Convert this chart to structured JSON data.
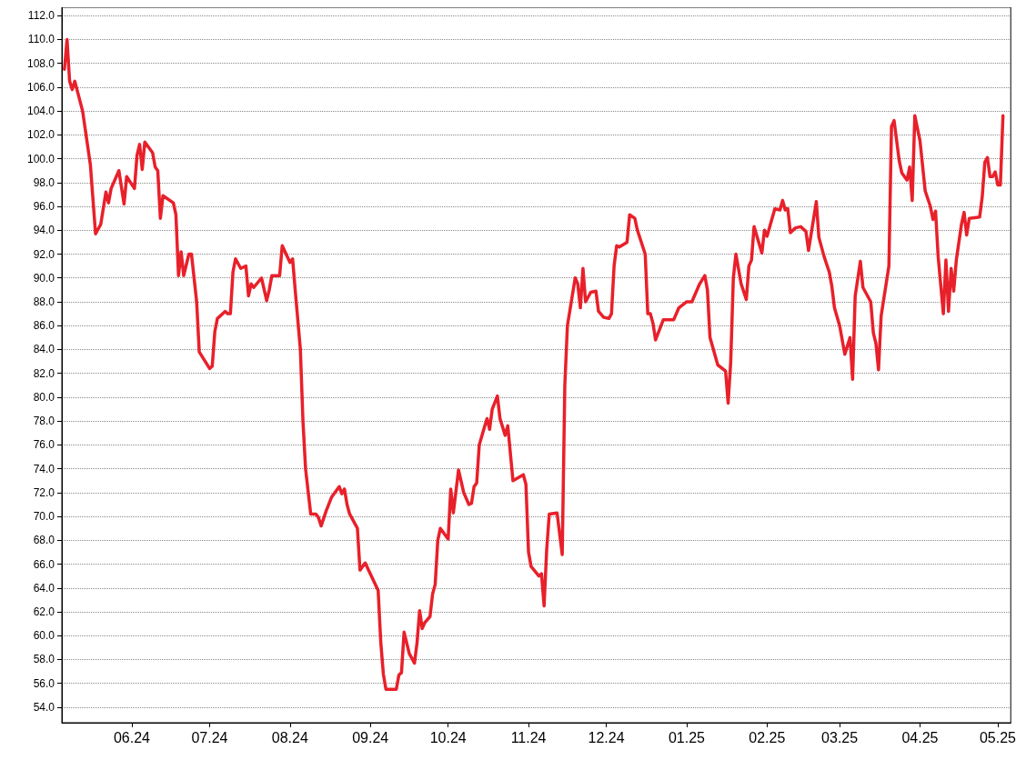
{
  "chart_data": {
    "type": "line",
    "color": "#e8202a",
    "marker": "none",
    "line_style": "solid",
    "grid": "y",
    "xlim": [
      "2024-05-05",
      "2025-05-06"
    ],
    "xticks": [
      {
        "value": "2024-06-01",
        "label": "06.24"
      },
      {
        "value": "2024-07-01",
        "label": "07.24"
      },
      {
        "value": "2024-08-01",
        "label": "08.24"
      },
      {
        "value": "2024-09-01",
        "label": "09.24"
      },
      {
        "value": "2024-10-01",
        "label": "10.24"
      },
      {
        "value": "2024-11-01",
        "label": "11.24"
      },
      {
        "value": "2024-12-01",
        "label": "12.24"
      },
      {
        "value": "2025-01-01",
        "label": "01.25"
      },
      {
        "value": "2025-02-01",
        "label": "02.25"
      },
      {
        "value": "2025-03-01",
        "label": "03.25"
      },
      {
        "value": "2025-04-01",
        "label": "04.25"
      },
      {
        "value": "2025-05-01",
        "label": "05.25"
      }
    ],
    "ylim": [
      52.7,
      112.7
    ],
    "yticks": [
      {
        "value": 54,
        "label": "54.0"
      },
      {
        "value": 56,
        "label": "56.0"
      },
      {
        "value": 58,
        "label": "58.0"
      },
      {
        "value": 60,
        "label": "60.0"
      },
      {
        "value": 62,
        "label": "62.0"
      },
      {
        "value": 64,
        "label": "64.0"
      },
      {
        "value": 66,
        "label": "66.0"
      },
      {
        "value": 68,
        "label": "68.0"
      },
      {
        "value": 70,
        "label": "70.0"
      },
      {
        "value": 72,
        "label": "72.0"
      },
      {
        "value": 74,
        "label": "74.0"
      },
      {
        "value": 76,
        "label": "76.0"
      },
      {
        "value": 78,
        "label": "78.0"
      },
      {
        "value": 80,
        "label": "80.0"
      },
      {
        "value": 82,
        "label": "82.0"
      },
      {
        "value": 84,
        "label": "84.0"
      },
      {
        "value": 86,
        "label": "86.0"
      },
      {
        "value": 88,
        "label": "88.0"
      },
      {
        "value": 90,
        "label": "90.0"
      },
      {
        "value": 92,
        "label": "92.0"
      },
      {
        "value": 94,
        "label": "94.0"
      },
      {
        "value": 96,
        "label": "96.0"
      },
      {
        "value": 98,
        "label": "98.0"
      },
      {
        "value": 100,
        "label": "100.0"
      },
      {
        "value": 102,
        "label": "102.0"
      },
      {
        "value": 104,
        "label": "104.0"
      },
      {
        "value": 106,
        "label": "106.0"
      },
      {
        "value": 108,
        "label": "108.0"
      },
      {
        "value": 110,
        "label": "110.0"
      },
      {
        "value": 112,
        "label": "112.0"
      }
    ],
    "x": [
      "2024-05-06",
      "2024-05-07",
      "2024-05-08",
      "2024-05-09",
      "2024-05-10",
      "2024-05-13",
      "2024-05-14",
      "2024-05-16",
      "2024-05-18",
      "2024-05-20",
      "2024-05-22",
      "2024-05-23",
      "2024-05-24",
      "2024-05-27",
      "2024-05-29",
      "2024-05-30",
      "2024-06-02",
      "2024-06-03",
      "2024-06-04",
      "2024-06-05",
      "2024-06-06",
      "2024-06-09",
      "2024-06-10",
      "2024-06-11",
      "2024-06-12",
      "2024-06-13",
      "2024-06-17",
      "2024-06-18",
      "2024-06-19",
      "2024-06-20",
      "2024-06-21",
      "2024-06-23",
      "2024-06-24",
      "2024-06-26",
      "2024-06-27",
      "2024-07-01",
      "2024-07-02",
      "2024-07-03",
      "2024-07-04",
      "2024-07-07",
      "2024-07-08",
      "2024-07-09",
      "2024-07-10",
      "2024-07-11",
      "2024-07-13",
      "2024-07-15",
      "2024-07-16",
      "2024-07-17",
      "2024-07-18",
      "2024-07-21",
      "2024-07-23",
      "2024-07-24",
      "2024-07-25",
      "2024-07-27",
      "2024-07-28",
      "2024-07-29",
      "2024-08-01",
      "2024-08-02",
      "2024-08-03",
      "2024-08-05",
      "2024-08-06",
      "2024-08-07",
      "2024-08-09",
      "2024-08-11",
      "2024-08-12",
      "2024-08-13",
      "2024-08-15",
      "2024-08-17",
      "2024-08-20",
      "2024-08-21",
      "2024-08-22",
      "2024-08-23",
      "2024-08-24",
      "2024-08-27",
      "2024-08-28",
      "2024-08-30",
      "2024-09-04",
      "2024-09-05",
      "2024-09-06",
      "2024-09-07",
      "2024-09-11",
      "2024-09-12",
      "2024-09-13",
      "2024-09-14",
      "2024-09-16",
      "2024-09-18",
      "2024-09-19",
      "2024-09-20",
      "2024-09-21",
      "2024-09-22",
      "2024-09-24",
      "2024-09-25",
      "2024-09-26",
      "2024-09-27",
      "2024-09-28",
      "2024-10-01",
      "2024-10-02",
      "2024-10-03",
      "2024-10-05",
      "2024-10-07",
      "2024-10-09",
      "2024-10-10",
      "2024-10-11",
      "2024-10-12",
      "2024-10-13",
      "2024-10-15",
      "2024-10-16",
      "2024-10-17",
      "2024-10-18",
      "2024-10-20",
      "2024-10-21",
      "2024-10-23",
      "2024-10-24",
      "2024-10-26",
      "2024-10-30",
      "2024-10-31",
      "2024-11-01",
      "2024-11-02",
      "2024-11-05",
      "2024-11-06",
      "2024-11-07",
      "2024-11-08",
      "2024-11-09",
      "2024-11-12",
      "2024-11-14",
      "2024-11-15",
      "2024-11-16",
      "2024-11-19",
      "2024-11-20",
      "2024-11-21",
      "2024-11-22",
      "2024-11-23",
      "2024-11-25",
      "2024-11-27",
      "2024-11-28",
      "2024-11-30",
      "2024-12-02",
      "2024-12-03",
      "2024-12-04",
      "2024-12-05",
      "2024-12-06",
      "2024-12-09",
      "2024-12-10",
      "2024-12-12",
      "2024-12-13",
      "2024-12-16",
      "2024-12-17",
      "2024-12-18",
      "2024-12-19",
      "2024-12-20",
      "2024-12-23",
      "2024-12-27",
      "2024-12-29",
      "2025-01-01",
      "2025-01-03",
      "2025-01-06",
      "2025-01-08",
      "2025-01-09",
      "2025-01-10",
      "2025-01-13",
      "2025-01-16",
      "2025-01-17",
      "2025-01-18",
      "2025-01-19",
      "2025-01-20",
      "2025-01-22",
      "2025-01-24",
      "2025-01-25",
      "2025-01-26",
      "2025-01-27",
      "2025-01-30",
      "2025-01-31",
      "2025-02-01",
      "2025-02-04",
      "2025-02-06",
      "2025-02-07",
      "2025-02-08",
      "2025-02-09",
      "2025-02-10",
      "2025-02-12",
      "2025-02-14",
      "2025-02-16",
      "2025-02-17",
      "2025-02-20",
      "2025-02-21",
      "2025-02-23",
      "2025-02-25",
      "2025-02-26",
      "2025-02-27",
      "2025-03-01",
      "2025-03-03",
      "2025-03-05",
      "2025-03-06",
      "2025-03-07",
      "2025-03-09",
      "2025-03-10",
      "2025-03-13",
      "2025-03-14",
      "2025-03-15",
      "2025-03-16",
      "2025-03-17",
      "2025-03-20",
      "2025-03-21",
      "2025-03-22",
      "2025-03-24",
      "2025-03-25",
      "2025-03-27",
      "2025-03-28",
      "2025-03-29",
      "2025-03-30",
      "2025-04-01",
      "2025-04-03",
      "2025-04-05",
      "2025-04-06",
      "2025-04-07",
      "2025-04-08",
      "2025-04-10",
      "2025-04-11",
      "2025-04-12",
      "2025-04-13",
      "2025-04-14",
      "2025-04-15",
      "2025-04-17",
      "2025-04-18",
      "2025-04-19",
      "2025-04-20",
      "2025-04-24",
      "2025-04-25",
      "2025-04-26",
      "2025-04-27",
      "2025-04-28",
      "2025-04-29",
      "2025-04-30",
      "2025-05-01",
      "2025-05-02",
      "2025-05-03"
    ],
    "values": [
      107.5,
      110.0,
      106.5,
      105.8,
      106.5,
      104.0,
      102.5,
      99.5,
      93.7,
      94.5,
      97.2,
      96.3,
      97.5,
      99.0,
      96.2,
      98.5,
      97.5,
      100.3,
      101.2,
      99.1,
      101.4,
      100.5,
      99.3,
      99.0,
      95.0,
      96.9,
      96.3,
      95.3,
      90.2,
      92.2,
      90.2,
      92.0,
      92.0,
      88.0,
      83.8,
      82.4,
      82.6,
      85.5,
      86.6,
      87.2,
      87.0,
      87.0,
      90.5,
      91.6,
      90.8,
      91.0,
      88.5,
      89.5,
      89.2,
      90.0,
      88.1,
      89.0,
      90.2,
      90.2,
      90.2,
      92.7,
      91.3,
      91.6,
      89.0,
      84.0,
      78.0,
      74.0,
      70.2,
      70.2,
      69.9,
      69.2,
      70.5,
      71.6,
      72.5,
      71.9,
      72.3,
      71.0,
      70.2,
      69.0,
      65.5,
      66.1,
      63.8,
      59.5,
      56.8,
      55.5,
      55.5,
      56.7,
      56.9,
      60.3,
      58.5,
      57.7,
      59.4,
      62.1,
      60.6,
      61.1,
      61.6,
      63.5,
      64.3,
      68.0,
      69.0,
      68.1,
      72.3,
      70.3,
      73.9,
      72.0,
      71.0,
      71.1,
      72.5,
      72.8,
      76.0,
      77.5,
      78.2,
      77.3,
      79.0,
      80.1,
      78.2,
      76.8,
      77.6,
      73.0,
      73.5,
      72.7,
      67.0,
      65.8,
      65.0,
      65.2,
      62.5,
      67.2,
      70.2,
      70.3,
      66.8,
      81.0,
      86.0,
      90.0,
      89.5,
      87.5,
      90.8,
      88.0,
      88.8,
      88.9,
      87.2,
      86.7,
      86.6,
      87.0,
      91.0,
      92.7,
      92.6,
      93.0,
      95.3,
      95.0,
      94.0,
      92.0,
      87.0,
      87.0,
      86.2,
      84.8,
      86.5,
      86.5,
      87.5,
      88.0,
      88.0,
      89.5,
      90.2,
      89.0,
      85.0,
      82.7,
      82.2,
      79.5,
      83.0,
      90.0,
      92.0,
      89.5,
      88.2,
      91.0,
      91.5,
      94.3,
      92.1,
      94.0,
      93.5,
      95.8,
      95.7,
      96.5,
      95.7,
      95.8,
      93.8,
      94.2,
      94.3,
      93.9,
      92.3,
      96.4,
      93.4,
      91.8,
      90.5,
      89.3,
      87.5,
      86.0,
      83.6,
      85.0,
      81.5,
      88.5,
      91.4,
      89.2,
      88.0,
      85.4,
      84.5,
      82.3,
      86.8,
      91.0,
      102.7,
      103.2,
      99.8,
      98.8,
      98.2,
      99.3,
      96.5,
      103.6,
      101.5,
      97.3,
      96.0,
      94.9,
      95.6,
      91.8,
      87.0,
      91.5,
      87.2,
      90.8,
      88.9,
      91.5,
      94.5,
      95.5,
      93.6,
      95.0,
      95.1,
      96.8,
      99.7,
      100.1,
      98.5,
      98.5,
      98.9,
      97.8,
      97.8,
      103.6
    ]
  }
}
